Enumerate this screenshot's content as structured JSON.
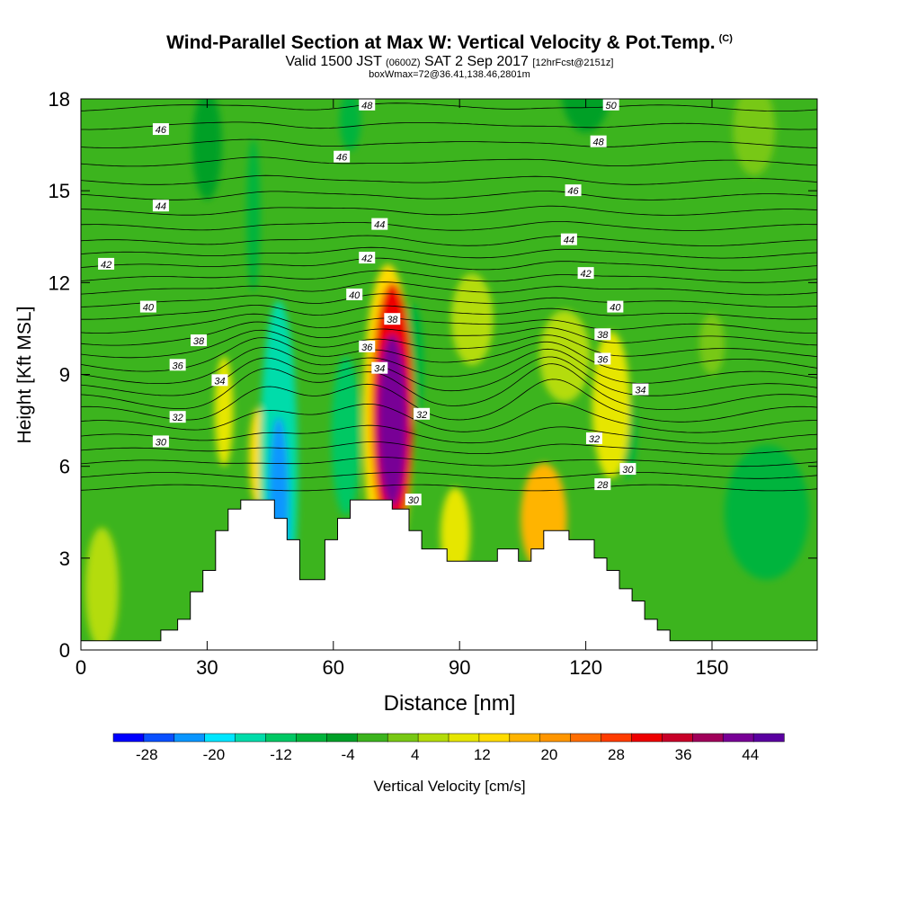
{
  "title": {
    "main": "Wind-Parallel Section at Max W: Vertical Velocity & Pot.Temp.",
    "copyright": "(C)",
    "valid_prefix": "Valid 1500 JST",
    "valid_z": "(0600Z)",
    "valid_date": "SAT 2 Sep 2017",
    "forecast": "[12hrFcst@2151z]",
    "box": "boxWmax=72@36.41,138.46,2801m"
  },
  "chart_data": {
    "type": "heatmap",
    "xlabel": "Distance [nm]",
    "ylabel": "Height [Kft MSL]",
    "xlim": [
      0,
      175
    ],
    "ylim": [
      0,
      18
    ],
    "x_ticks": [
      "0",
      "30",
      "60",
      "90",
      "120",
      "150"
    ],
    "y_ticks": [
      "0",
      "3",
      "6",
      "9",
      "12",
      "15",
      "18"
    ],
    "colorbar": {
      "label": "Vertical Velocity [cm/s]",
      "ticks": [
        "-28",
        "-20",
        "-12",
        "-4",
        "4",
        "12",
        "20",
        "28",
        "36",
        "44"
      ],
      "bounds": [
        -32,
        48
      ],
      "colors": [
        "#0000ff",
        "#0a50ff",
        "#0a96ff",
        "#00e6ff",
        "#00dcaa",
        "#00c864",
        "#00b43c",
        "#00a028",
        "#3cb41e",
        "#78c814",
        "#b4dc0a",
        "#e6e600",
        "#ffdc00",
        "#ffb400",
        "#ff9600",
        "#ff6e00",
        "#ff3c00",
        "#ee0000",
        "#c80028",
        "#a0005a",
        "#780096",
        "#5a00a0"
      ]
    },
    "terrain_kft": [
      [
        0,
        0.3
      ],
      [
        19,
        0.3
      ],
      [
        19,
        0.65
      ],
      [
        23,
        0.65
      ],
      [
        23,
        1.0
      ],
      [
        26,
        1.0
      ],
      [
        26,
        1.9
      ],
      [
        29,
        1.9
      ],
      [
        29,
        2.6
      ],
      [
        32,
        2.6
      ],
      [
        32,
        3.9
      ],
      [
        35,
        3.9
      ],
      [
        35,
        4.6
      ],
      [
        38,
        4.6
      ],
      [
        38,
        4.9
      ],
      [
        46,
        4.9
      ],
      [
        46,
        4.3
      ],
      [
        49,
        4.3
      ],
      [
        49,
        3.6
      ],
      [
        52,
        3.6
      ],
      [
        52,
        2.3
      ],
      [
        58,
        2.3
      ],
      [
        58,
        3.6
      ],
      [
        61,
        3.6
      ],
      [
        61,
        4.3
      ],
      [
        64,
        4.3
      ],
      [
        64,
        4.9
      ],
      [
        74,
        4.9
      ],
      [
        74,
        4.6
      ],
      [
        78,
        4.6
      ],
      [
        78,
        3.9
      ],
      [
        81,
        3.9
      ],
      [
        81,
        3.3
      ],
      [
        87,
        3.3
      ],
      [
        87,
        2.9
      ],
      [
        99,
        2.9
      ],
      [
        99,
        3.3
      ],
      [
        104,
        3.3
      ],
      [
        104,
        2.9
      ],
      [
        107,
        2.9
      ],
      [
        107,
        3.3
      ],
      [
        110,
        3.3
      ],
      [
        110,
        3.9
      ],
      [
        116,
        3.9
      ],
      [
        116,
        3.6
      ],
      [
        122,
        3.6
      ],
      [
        122,
        3.0
      ],
      [
        125,
        3.0
      ],
      [
        125,
        2.6
      ],
      [
        128,
        2.6
      ],
      [
        128,
        2.0
      ],
      [
        131,
        2.0
      ],
      [
        131,
        1.6
      ],
      [
        134,
        1.6
      ],
      [
        134,
        1.0
      ],
      [
        137,
        1.0
      ],
      [
        137,
        0.65
      ],
      [
        140,
        0.65
      ],
      [
        140,
        0.3
      ],
      [
        175,
        0.3
      ]
    ],
    "vv_features": [
      {
        "x": 74,
        "y": 7.5,
        "rx": 3.5,
        "ry": 2.8,
        "value": 44
      },
      {
        "x": 74,
        "y": 7.8,
        "rx": 5.0,
        "ry": 4.2,
        "value": 30
      },
      {
        "x": 73,
        "y": 7.6,
        "rx": 6.0,
        "ry": 5.0,
        "value": 14
      },
      {
        "x": 47,
        "y": 5.8,
        "rx": 4.5,
        "ry": 5.6,
        "value": -14
      },
      {
        "x": 47,
        "y": 4.8,
        "rx": 2.4,
        "ry": 2.8,
        "value": -24
      },
      {
        "x": 63,
        "y": 7.0,
        "rx": 3.5,
        "ry": 2.6,
        "value": -12
      },
      {
        "x": 79,
        "y": 9.3,
        "rx": 2.5,
        "ry": 2.0,
        "value": -10
      },
      {
        "x": 42,
        "y": 6.3,
        "rx": 2.0,
        "ry": 1.6,
        "value": 12
      },
      {
        "x": 34,
        "y": 7.8,
        "rx": 2.2,
        "ry": 1.8,
        "value": 8
      },
      {
        "x": 110,
        "y": 4.3,
        "rx": 5.5,
        "ry": 1.8,
        "value": 16
      },
      {
        "x": 89,
        "y": 3.8,
        "rx": 3.5,
        "ry": 1.5,
        "value": 10
      },
      {
        "x": 126,
        "y": 8.0,
        "rx": 4.5,
        "ry": 2.4,
        "value": 9
      },
      {
        "x": 130,
        "y": 7.0,
        "rx": 2.0,
        "ry": 1.4,
        "value": -8
      },
      {
        "x": 163,
        "y": 4.5,
        "rx": 10.0,
        "ry": 2.2,
        "value": -8
      },
      {
        "x": 115,
        "y": 9.6,
        "rx": 6.0,
        "ry": 1.5,
        "value": 6
      },
      {
        "x": 93,
        "y": 10.8,
        "rx": 5.0,
        "ry": 1.5,
        "value": 5
      },
      {
        "x": 5,
        "y": 2.0,
        "rx": 4.0,
        "ry": 2.0,
        "value": 6
      },
      {
        "x": 41,
        "y": 14.2,
        "rx": 1.6,
        "ry": 2.5,
        "value": -8
      },
      {
        "x": 64,
        "y": 17.3,
        "rx": 2.5,
        "ry": 1.0,
        "value": -8
      },
      {
        "x": 120,
        "y": 18.4,
        "rx": 6.0,
        "ry": 1.5,
        "value": -5
      },
      {
        "x": 30,
        "y": 16.5,
        "rx": 3.5,
        "ry": 1.8,
        "value": -5
      },
      {
        "x": 160,
        "y": 17.0,
        "rx": 5.0,
        "ry": 1.5,
        "value": 4
      },
      {
        "x": 150,
        "y": 10.0,
        "rx": 3.0,
        "ry": 1.0,
        "value": 4
      }
    ],
    "theta_labels": [
      {
        "x": 19,
        "y": 17.0,
        "t": "46"
      },
      {
        "x": 68,
        "y": 17.8,
        "t": "48"
      },
      {
        "x": 126,
        "y": 17.8,
        "t": "50"
      },
      {
        "x": 123,
        "y": 16.6,
        "t": "48"
      },
      {
        "x": 62,
        "y": 16.1,
        "t": "46"
      },
      {
        "x": 117,
        "y": 15.0,
        "t": "46"
      },
      {
        "x": 19,
        "y": 14.5,
        "t": "44"
      },
      {
        "x": 71,
        "y": 13.9,
        "t": "44"
      },
      {
        "x": 116,
        "y": 13.4,
        "t": "44"
      },
      {
        "x": 6,
        "y": 12.6,
        "t": "42"
      },
      {
        "x": 68,
        "y": 12.8,
        "t": "42"
      },
      {
        "x": 120,
        "y": 12.3,
        "t": "42"
      },
      {
        "x": 16,
        "y": 11.2,
        "t": "40"
      },
      {
        "x": 65,
        "y": 11.6,
        "t": "40"
      },
      {
        "x": 127,
        "y": 11.2,
        "t": "40"
      },
      {
        "x": 28,
        "y": 10.1,
        "t": "38"
      },
      {
        "x": 74,
        "y": 10.8,
        "t": "38"
      },
      {
        "x": 124,
        "y": 10.3,
        "t": "38"
      },
      {
        "x": 23,
        "y": 9.3,
        "t": "36"
      },
      {
        "x": 68,
        "y": 9.9,
        "t": "36"
      },
      {
        "x": 124,
        "y": 9.5,
        "t": "36"
      },
      {
        "x": 33,
        "y": 8.8,
        "t": "34"
      },
      {
        "x": 71,
        "y": 9.2,
        "t": "34"
      },
      {
        "x": 133,
        "y": 8.5,
        "t": "34"
      },
      {
        "x": 23,
        "y": 7.6,
        "t": "32"
      },
      {
        "x": 81,
        "y": 7.7,
        "t": "32"
      },
      {
        "x": 122,
        "y": 6.9,
        "t": "32"
      },
      {
        "x": 19,
        "y": 6.8,
        "t": "30"
      },
      {
        "x": 79,
        "y": 4.9,
        "t": "30"
      },
      {
        "x": 130,
        "y": 5.9,
        "t": "30"
      },
      {
        "x": 124,
        "y": 5.4,
        "t": "28"
      }
    ],
    "theta_lines": [
      {
        "y0": 6.9,
        "bump": 0.3,
        "amp": 0.15
      },
      {
        "y0": 7.3,
        "bump": 0.6,
        "amp": 0.2
      },
      {
        "y0": 7.7,
        "bump": 0.9,
        "amp": 0.25
      },
      {
        "y0": 8.1,
        "bump": 1.0,
        "amp": 0.25
      },
      {
        "y0": 8.5,
        "bump": 0.9,
        "amp": 0.2
      },
      {
        "y0": 8.9,
        "bump": 0.8,
        "amp": 0.2
      },
      {
        "y0": 9.3,
        "bump": 0.7,
        "amp": 0.2
      },
      {
        "y0": 9.7,
        "bump": 0.6,
        "amp": 0.15
      },
      {
        "y0": 10.1,
        "bump": 0.5,
        "amp": 0.15
      },
      {
        "y0": 10.5,
        "bump": 0.4,
        "amp": 0.15
      },
      {
        "y0": 10.9,
        "bump": 0.35,
        "amp": 0.1
      },
      {
        "y0": 11.3,
        "bump": 0.3,
        "amp": 0.1
      },
      {
        "y0": 11.7,
        "bump": 0.25,
        "amp": 0.1
      },
      {
        "y0": 12.1,
        "bump": 0.2,
        "amp": 0.1
      },
      {
        "y0": 12.5,
        "bump": 0.2,
        "amp": 0.1
      },
      {
        "y0": 12.9,
        "bump": 0.15,
        "amp": 0.1
      },
      {
        "y0": 13.3,
        "bump": 0.15,
        "amp": 0.1
      },
      {
        "y0": 13.8,
        "bump": 0.1,
        "amp": 0.1
      },
      {
        "y0": 14.3,
        "bump": 0.1,
        "amp": 0.1
      },
      {
        "y0": 14.8,
        "bump": 0.1,
        "amp": 0.1
      },
      {
        "y0": 15.3,
        "bump": 0.1,
        "amp": 0.1
      },
      {
        "y0": 15.9,
        "bump": 0.1,
        "amp": 0.1
      },
      {
        "y0": 16.5,
        "bump": 0.1,
        "amp": 0.1
      },
      {
        "y0": 17.1,
        "bump": 0.1,
        "amp": 0.1
      },
      {
        "y0": 17.7,
        "bump": 0.1,
        "amp": 0.1
      },
      {
        "y0": 6.5,
        "bump": 0.2,
        "amp": 0.1
      },
      {
        "y0": 6.1,
        "bump": 0.1,
        "amp": 0.1
      },
      {
        "y0": 5.7,
        "bump": 0.0,
        "amp": 0.1
      },
      {
        "y0": 5.3,
        "bump": 0.0,
        "amp": 0.1
      }
    ]
  }
}
